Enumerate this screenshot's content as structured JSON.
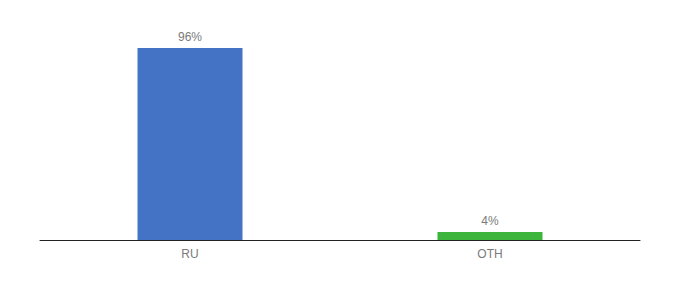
{
  "chart_data": {
    "type": "bar",
    "categories": [
      "RU",
      "OTH"
    ],
    "values": [
      96,
      4
    ],
    "colors": [
      "#4472c4",
      "#3db53d"
    ],
    "data_labels": true,
    "value_labels": [
      "96%",
      "4%"
    ],
    "ylim": [
      0,
      100
    ],
    "tick_labels": "x",
    "grid": false
  }
}
